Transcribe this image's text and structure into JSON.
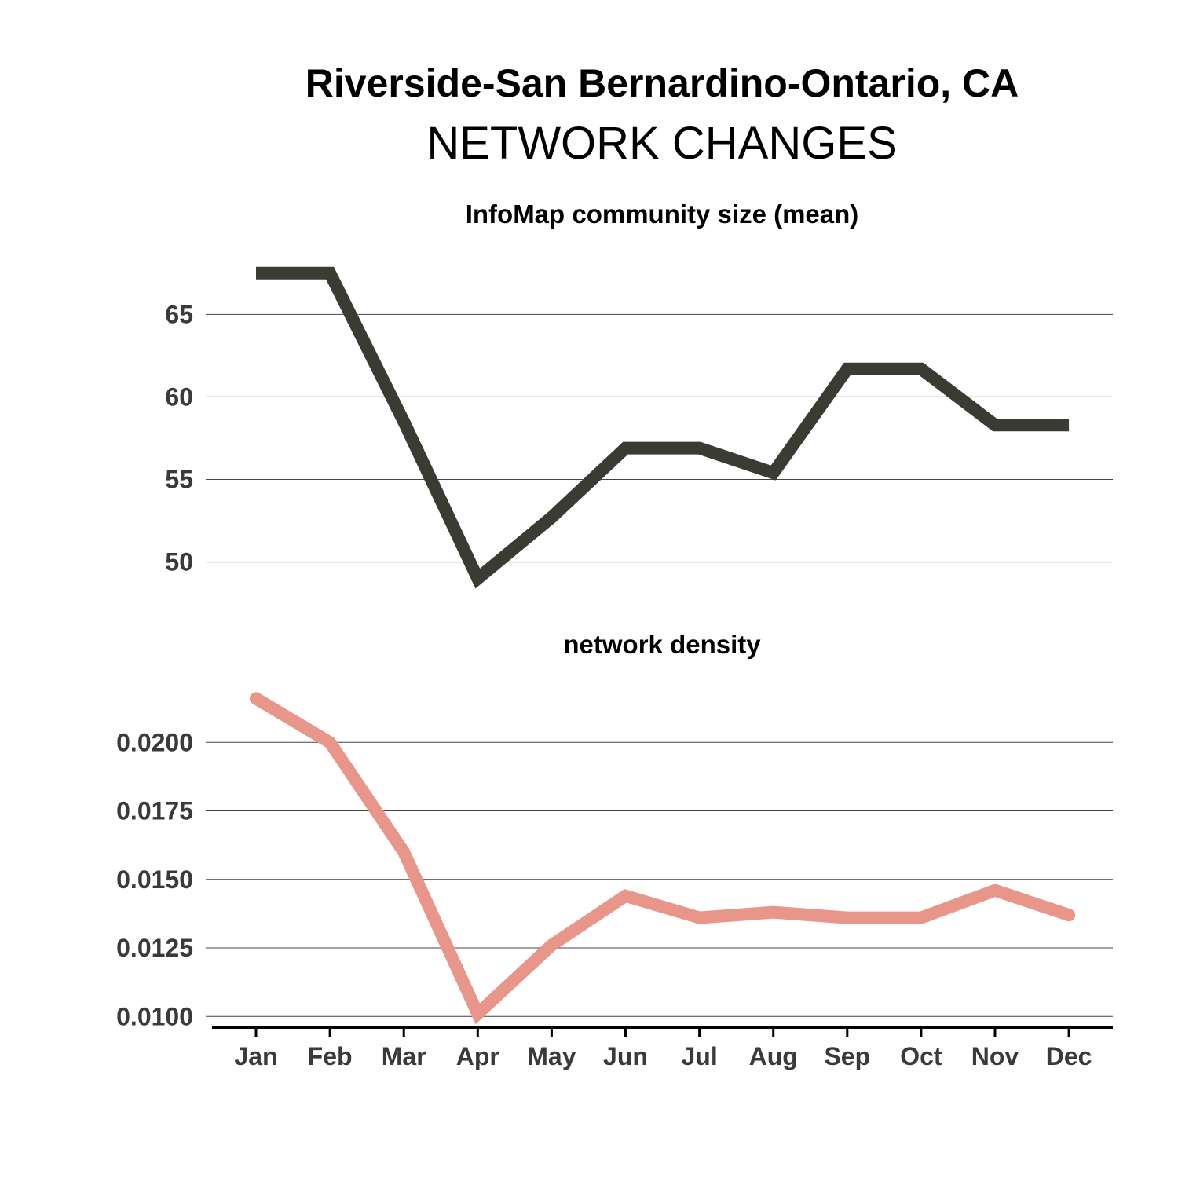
{
  "title": "Riverside-San Bernardino-Ontario, CA",
  "subtitle": "NETWORK CHANGES",
  "chart_data": [
    {
      "type": "line",
      "title": "InfoMap community size (mean)",
      "categories": [
        "Jan",
        "Feb",
        "Mar",
        "Apr",
        "May",
        "Jun",
        "Jul",
        "Aug",
        "Sep",
        "Oct",
        "Nov",
        "Dec"
      ],
      "values": [
        67.5,
        67.5,
        58.5,
        49.0,
        52.7,
        56.9,
        56.9,
        55.4,
        61.7,
        61.7,
        58.3,
        58.3
      ],
      "yticks": [
        50,
        55,
        60,
        65
      ],
      "ytick_labels": [
        "50",
        "55",
        "60",
        "65"
      ],
      "ylim": [
        47.6,
        69.3
      ],
      "color": "#3b3a33",
      "grid": true
    },
    {
      "type": "line",
      "title": "network density",
      "categories": [
        "Jan",
        "Feb",
        "Mar",
        "Apr",
        "May",
        "Jun",
        "Jul",
        "Aug",
        "Sep",
        "Oct",
        "Nov",
        "Dec"
      ],
      "values": [
        0.0216,
        0.02,
        0.016,
        0.0101,
        0.0126,
        0.0144,
        0.0136,
        0.0138,
        0.0136,
        0.0136,
        0.0146,
        0.0137
      ],
      "yticks": [
        0.01,
        0.0125,
        0.015,
        0.0175,
        0.02
      ],
      "ytick_labels": [
        "0.0100",
        "0.0125",
        "0.0150",
        "0.0175",
        "0.0200"
      ],
      "ylim": [
        0.00955,
        0.0225
      ],
      "color": "#e8958a",
      "grid": true
    }
  ]
}
